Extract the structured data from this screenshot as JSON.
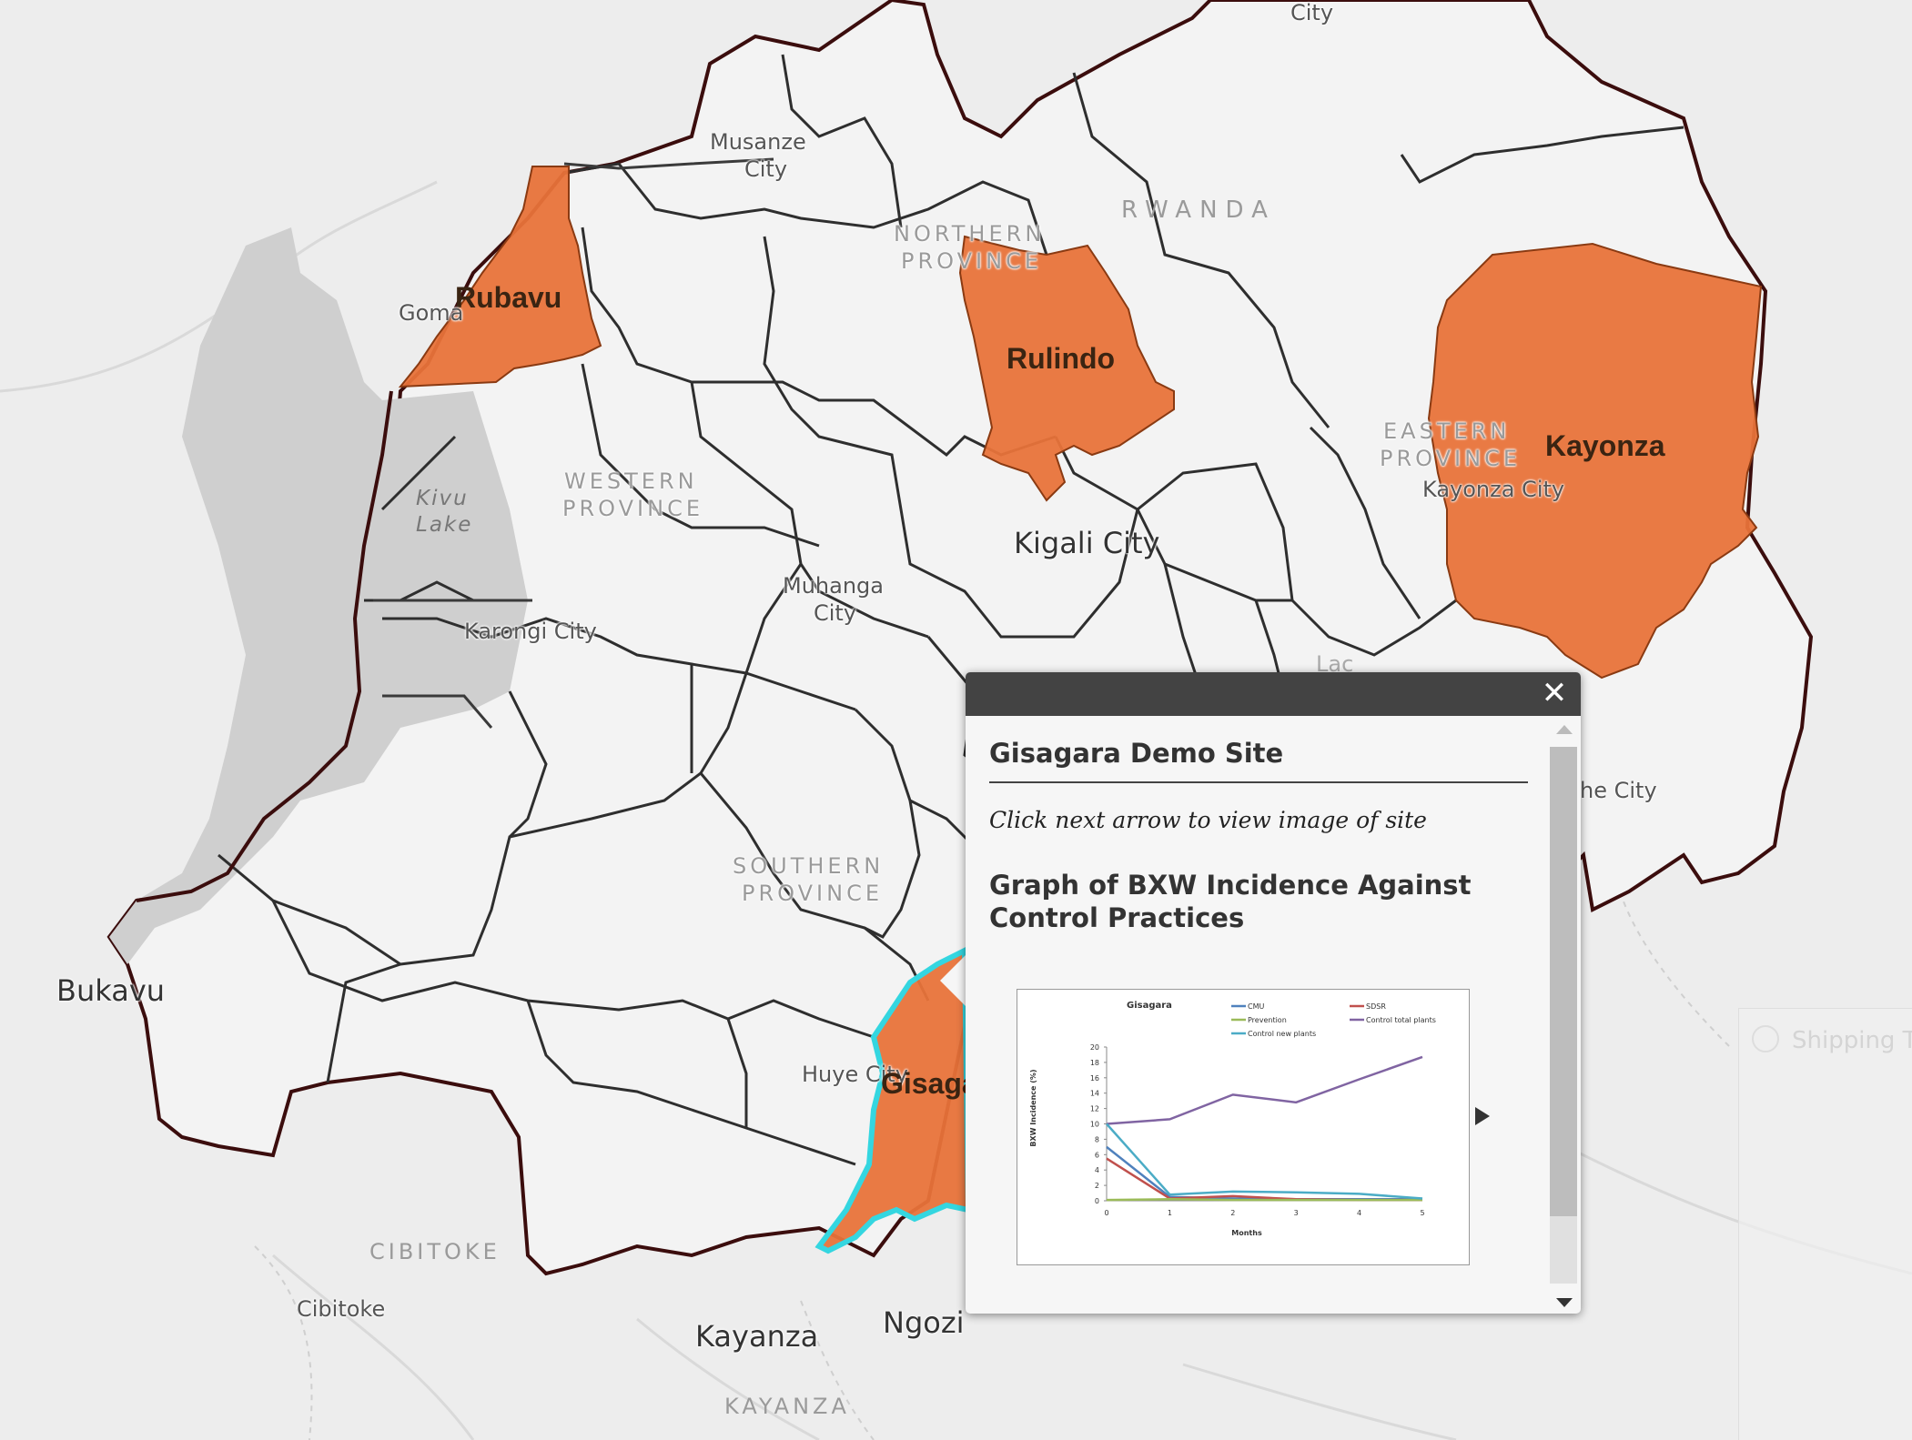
{
  "map": {
    "country_label": "RWANDA",
    "district_fill": "#e8733a",
    "highlight_color": "#34d6e0",
    "boundary_color": "#333333",
    "border_color": "#3b0d0d",
    "districts": {
      "rubavu": "Rubavu",
      "rulindo": "Rulindo",
      "kayonza": "Kayonza",
      "gisagara": "Gisaga"
    },
    "provinces": {
      "northern": [
        "NORTHERN",
        "PROVINCE"
      ],
      "western": [
        "WESTERN",
        "PROVINCE"
      ],
      "eastern": [
        "EASTERN",
        "PROVINCE"
      ],
      "southern": [
        "SOUTHERN",
        "PROVINCE"
      ]
    },
    "cities": {
      "musanze": [
        "Musanze",
        "City"
      ],
      "nyagatare": "City",
      "goma": "Goma",
      "kivu_lake": [
        "Kivu",
        "Lake"
      ],
      "karongi": "Karongi City",
      "muhanga": [
        "Muhanga",
        "City"
      ],
      "kigali": "Kigali City",
      "kayonza_city": "Kayonza City",
      "rwamagana_partial": "he City",
      "bukavu": "Bukavu",
      "huye": "Huye City",
      "cibitoke_region": "CIBITOKE",
      "cibitoke": "Cibitoke",
      "kayanza": "Kayanza",
      "ngozi": "Ngozi",
      "kayanza_region": "KAYANZA",
      "lac_partial": "Lac"
    }
  },
  "popup": {
    "close_icon": "close-icon",
    "close_symbol": "✕",
    "title": "Gisagara Demo Site",
    "note": "Click next arrow to view image of  site",
    "heading": "Graph of BXW Incidence Against Control Practices"
  },
  "chart_data": {
    "type": "line",
    "title": "Gisagara",
    "xlabel": "Months",
    "ylabel": "BXW Incidence (%)",
    "x": [
      0,
      1,
      2,
      3,
      4,
      5
    ],
    "xlim": [
      0,
      5
    ],
    "ylim": [
      0,
      20
    ],
    "yticks": [
      0,
      2,
      4,
      6,
      8,
      10,
      12,
      14,
      16,
      18,
      20
    ],
    "legend": "top-right",
    "series": [
      {
        "name": "CMU",
        "color": "#4f81bd",
        "values": [
          7,
          0.5,
          0.3,
          0.2,
          0.2,
          0.2
        ]
      },
      {
        "name": "SDSR",
        "color": "#c0504d",
        "values": [
          5.5,
          0.3,
          0.6,
          0.2,
          0.1,
          0.1
        ]
      },
      {
        "name": "Prevention",
        "color": "#9bbb59",
        "values": [
          0.1,
          0.2,
          0.1,
          0.1,
          0.1,
          0.1
        ]
      },
      {
        "name": "Control total plants",
        "color": "#8064a2",
        "values": [
          10,
          10.6,
          13.8,
          12.8,
          15.8,
          18.7
        ]
      },
      {
        "name": "Control new plants",
        "color": "#4bacc6",
        "values": [
          10,
          0.8,
          1.2,
          1.1,
          0.9,
          0.3
        ]
      }
    ]
  },
  "sidebar_widget": {
    "label": "Shipping T",
    "icon": "shipping-icon"
  }
}
